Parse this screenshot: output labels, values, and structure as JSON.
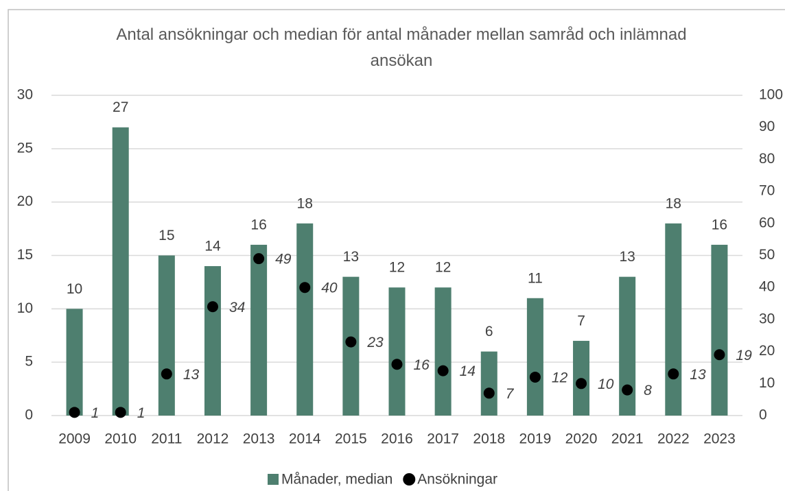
{
  "chart_data": {
    "type": "bar",
    "title": "Antal ansökningar och median för antal månader mellan samråd och inlämnad ansökan",
    "categories": [
      "2009",
      "2010",
      "2011",
      "2012",
      "2013",
      "2014",
      "2015",
      "2016",
      "2017",
      "2018",
      "2019",
      "2020",
      "2021",
      "2022",
      "2023"
    ],
    "series": [
      {
        "name": "Månader, median",
        "type": "bar",
        "color": "#4e7f6f",
        "values": [
          10,
          27,
          15,
          14,
          16,
          18,
          13,
          12,
          12,
          6,
          11,
          7,
          13,
          18,
          16
        ]
      },
      {
        "name": "Ansökningar",
        "type": "scatter",
        "axis": "y2",
        "color": "#000000",
        "values": [
          1,
          1,
          13,
          34,
          49,
          40,
          23,
          16,
          14,
          7,
          12,
          10,
          8,
          13,
          19
        ]
      }
    ],
    "ylim": [
      0,
      30
    ],
    "yticks": [
      0,
      5,
      10,
      15,
      20,
      25,
      30
    ],
    "y2lim": [
      0,
      100
    ],
    "y2ticks": [
      0,
      10,
      20,
      30,
      40,
      50,
      60,
      70,
      80,
      90,
      100
    ],
    "grid": true,
    "legend": "bottom"
  }
}
